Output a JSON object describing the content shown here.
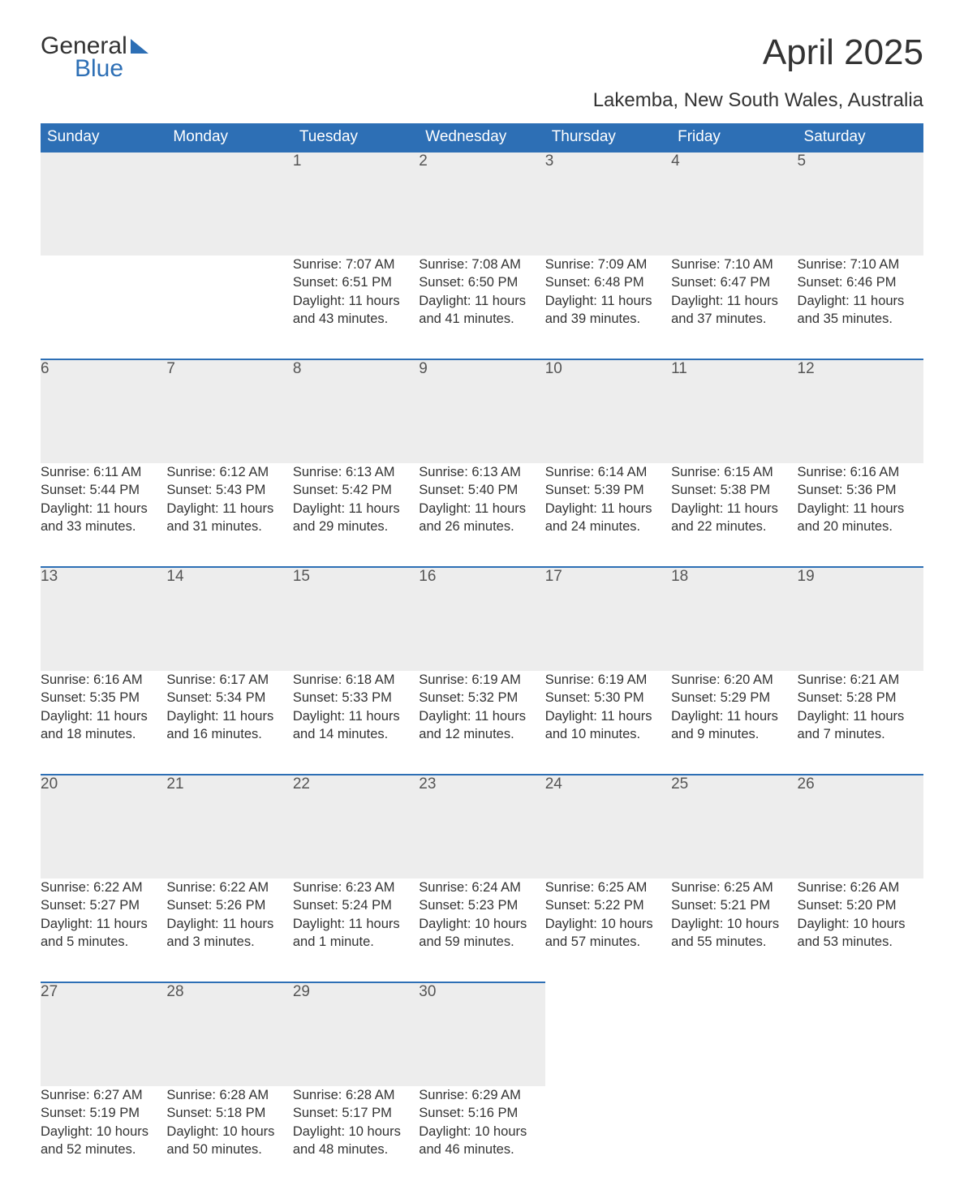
{
  "brand": {
    "part1": "General",
    "part2": "Blue"
  },
  "title": "April 2025",
  "subtitle": "Lakemba, New South Wales, Australia",
  "colors": {
    "header_bg": "#2d6fb5",
    "header_text": "#ffffff",
    "daynum_bg": "#ededed",
    "row_border": "#2d6fb5",
    "body_text": "#333333",
    "page_bg": "#ffffff"
  },
  "layout": {
    "columns": 7,
    "week_rows": 5
  },
  "day_headers": [
    "Sunday",
    "Monday",
    "Tuesday",
    "Wednesday",
    "Thursday",
    "Friday",
    "Saturday"
  ],
  "weeks": [
    [
      null,
      null,
      {
        "n": "1",
        "sr": "7:07 AM",
        "ss": "6:51 PM",
        "dl": "11 hours and 43 minutes."
      },
      {
        "n": "2",
        "sr": "7:08 AM",
        "ss": "6:50 PM",
        "dl": "11 hours and 41 minutes."
      },
      {
        "n": "3",
        "sr": "7:09 AM",
        "ss": "6:48 PM",
        "dl": "11 hours and 39 minutes."
      },
      {
        "n": "4",
        "sr": "7:10 AM",
        "ss": "6:47 PM",
        "dl": "11 hours and 37 minutes."
      },
      {
        "n": "5",
        "sr": "7:10 AM",
        "ss": "6:46 PM",
        "dl": "11 hours and 35 minutes."
      }
    ],
    [
      {
        "n": "6",
        "sr": "6:11 AM",
        "ss": "5:44 PM",
        "dl": "11 hours and 33 minutes."
      },
      {
        "n": "7",
        "sr": "6:12 AM",
        "ss": "5:43 PM",
        "dl": "11 hours and 31 minutes."
      },
      {
        "n": "8",
        "sr": "6:13 AM",
        "ss": "5:42 PM",
        "dl": "11 hours and 29 minutes."
      },
      {
        "n": "9",
        "sr": "6:13 AM",
        "ss": "5:40 PM",
        "dl": "11 hours and 26 minutes."
      },
      {
        "n": "10",
        "sr": "6:14 AM",
        "ss": "5:39 PM",
        "dl": "11 hours and 24 minutes."
      },
      {
        "n": "11",
        "sr": "6:15 AM",
        "ss": "5:38 PM",
        "dl": "11 hours and 22 minutes."
      },
      {
        "n": "12",
        "sr": "6:16 AM",
        "ss": "5:36 PM",
        "dl": "11 hours and 20 minutes."
      }
    ],
    [
      {
        "n": "13",
        "sr": "6:16 AM",
        "ss": "5:35 PM",
        "dl": "11 hours and 18 minutes."
      },
      {
        "n": "14",
        "sr": "6:17 AM",
        "ss": "5:34 PM",
        "dl": "11 hours and 16 minutes."
      },
      {
        "n": "15",
        "sr": "6:18 AM",
        "ss": "5:33 PM",
        "dl": "11 hours and 14 minutes."
      },
      {
        "n": "16",
        "sr": "6:19 AM",
        "ss": "5:32 PM",
        "dl": "11 hours and 12 minutes."
      },
      {
        "n": "17",
        "sr": "6:19 AM",
        "ss": "5:30 PM",
        "dl": "11 hours and 10 minutes."
      },
      {
        "n": "18",
        "sr": "6:20 AM",
        "ss": "5:29 PM",
        "dl": "11 hours and 9 minutes."
      },
      {
        "n": "19",
        "sr": "6:21 AM",
        "ss": "5:28 PM",
        "dl": "11 hours and 7 minutes."
      }
    ],
    [
      {
        "n": "20",
        "sr": "6:22 AM",
        "ss": "5:27 PM",
        "dl": "11 hours and 5 minutes."
      },
      {
        "n": "21",
        "sr": "6:22 AM",
        "ss": "5:26 PM",
        "dl": "11 hours and 3 minutes."
      },
      {
        "n": "22",
        "sr": "6:23 AM",
        "ss": "5:24 PM",
        "dl": "11 hours and 1 minute."
      },
      {
        "n": "23",
        "sr": "6:24 AM",
        "ss": "5:23 PM",
        "dl": "10 hours and 59 minutes."
      },
      {
        "n": "24",
        "sr": "6:25 AM",
        "ss": "5:22 PM",
        "dl": "10 hours and 57 minutes."
      },
      {
        "n": "25",
        "sr": "6:25 AM",
        "ss": "5:21 PM",
        "dl": "10 hours and 55 minutes."
      },
      {
        "n": "26",
        "sr": "6:26 AM",
        "ss": "5:20 PM",
        "dl": "10 hours and 53 minutes."
      }
    ],
    [
      {
        "n": "27",
        "sr": "6:27 AM",
        "ss": "5:19 PM",
        "dl": "10 hours and 52 minutes."
      },
      {
        "n": "28",
        "sr": "6:28 AM",
        "ss": "5:18 PM",
        "dl": "10 hours and 50 minutes."
      },
      {
        "n": "29",
        "sr": "6:28 AM",
        "ss": "5:17 PM",
        "dl": "10 hours and 48 minutes."
      },
      {
        "n": "30",
        "sr": "6:29 AM",
        "ss": "5:16 PM",
        "dl": "10 hours and 46 minutes."
      },
      null,
      null,
      null
    ]
  ],
  "labels": {
    "sunrise": "Sunrise: ",
    "sunset": "Sunset: ",
    "daylight": "Daylight: "
  }
}
